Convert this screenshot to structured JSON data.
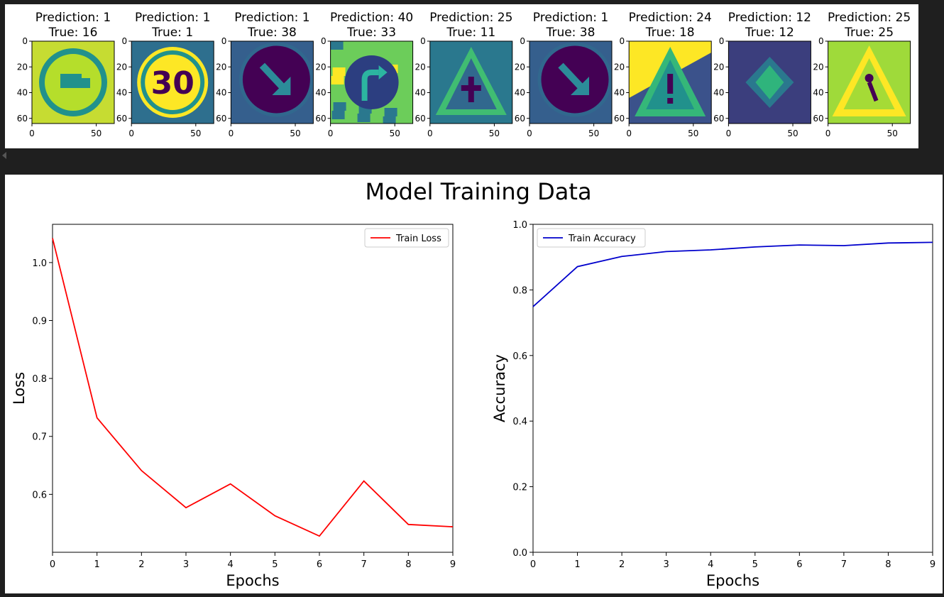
{
  "samples": [
    {
      "prediction_label": "Prediction: 1",
      "true_label": "True: 16",
      "icon": "no-trucks-sign"
    },
    {
      "prediction_label": "Prediction: 1",
      "true_label": "True: 1",
      "icon": "speed-limit-30-sign"
    },
    {
      "prediction_label": "Prediction: 1",
      "true_label": "True: 38",
      "icon": "keep-right-sign"
    },
    {
      "prediction_label": "Prediction: 40",
      "true_label": "True: 33",
      "icon": "turn-right-sign"
    },
    {
      "prediction_label": "Prediction: 25",
      "true_label": "True: 11",
      "icon": "right-of-way-sign"
    },
    {
      "prediction_label": "Prediction: 1",
      "true_label": "True: 38",
      "icon": "keep-right-sign"
    },
    {
      "prediction_label": "Prediction: 24",
      "true_label": "True: 18",
      "icon": "general-caution-sign"
    },
    {
      "prediction_label": "Prediction: 12",
      "true_label": "True: 12",
      "icon": "priority-road-sign"
    },
    {
      "prediction_label": "Prediction: 25",
      "true_label": "True: 25",
      "icon": "road-work-sign"
    }
  ],
  "sample_axes": {
    "x_ticks": [
      "0",
      "50"
    ],
    "y_ticks": [
      "0",
      "20",
      "40",
      "60"
    ]
  },
  "figure_title": "Model Training Data",
  "colors": {
    "loss_line": "#ff0000",
    "accuracy_line": "#0000cc",
    "viridis_dark": "#440154",
    "viridis_teal": "#21918c",
    "viridis_yellow": "#fde725"
  },
  "chart_data": [
    {
      "type": "line",
      "x": [
        0,
        1,
        2,
        3,
        4,
        5,
        6,
        7,
        8,
        9
      ],
      "series": [
        {
          "name": "Train Loss",
          "values": [
            1.042,
            0.732,
            0.641,
            0.577,
            0.618,
            0.563,
            0.528,
            0.623,
            0.548,
            0.544
          ]
        }
      ],
      "xlabel": "Epochs",
      "ylabel": "Loss",
      "xlim": [
        0,
        9
      ],
      "ylim": [
        0.5,
        1.066
      ],
      "x_ticks": [
        "0",
        "1",
        "2",
        "3",
        "4",
        "5",
        "6",
        "7",
        "8",
        "9"
      ],
      "y_ticks": [
        "0.6",
        "0.7",
        "0.8",
        "0.9",
        "1.0"
      ],
      "y_tick_values": [
        0.6,
        0.7,
        0.8,
        0.9,
        1.0
      ],
      "legend": "top-right",
      "grid": false
    },
    {
      "type": "line",
      "x": [
        0,
        1,
        2,
        3,
        4,
        5,
        6,
        7,
        8,
        9
      ],
      "series": [
        {
          "name": "Train Accuracy",
          "values": [
            0.749,
            0.871,
            0.902,
            0.917,
            0.922,
            0.931,
            0.937,
            0.935,
            0.943,
            0.945
          ]
        }
      ],
      "xlabel": "Epochs",
      "ylabel": "Accuracy",
      "xlim": [
        0,
        9
      ],
      "ylim": [
        0.0,
        1.0
      ],
      "x_ticks": [
        "0",
        "1",
        "2",
        "3",
        "4",
        "5",
        "6",
        "7",
        "8",
        "9"
      ],
      "y_ticks": [
        "0.0",
        "0.2",
        "0.4",
        "0.6",
        "0.8",
        "1.0"
      ],
      "y_tick_values": [
        0.0,
        0.2,
        0.4,
        0.6,
        0.8,
        1.0
      ],
      "legend": "top-left",
      "grid": false
    }
  ]
}
